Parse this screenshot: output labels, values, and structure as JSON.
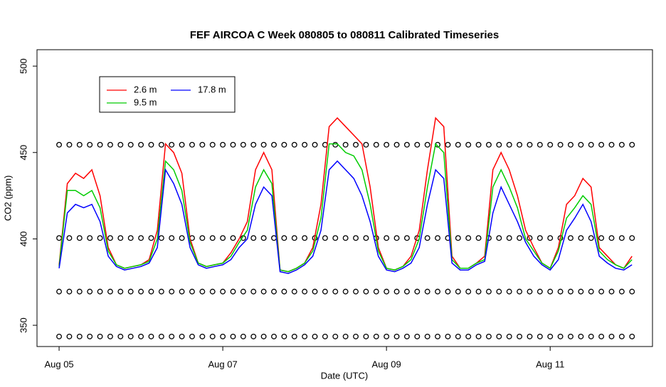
{
  "chart_data": {
    "type": "line",
    "title": "FEF AIRCOA C  Week 080805 to 080811  Calibrated Timeseries",
    "xlabel": "Date (UTC)",
    "ylabel": "CO2 (ppm)",
    "x": [
      0,
      0.1,
      0.2,
      0.3,
      0.4,
      0.5,
      0.6,
      0.7,
      0.8,
      0.9,
      1,
      1.1,
      1.2,
      1.3,
      1.4,
      1.5,
      1.6,
      1.7,
      1.8,
      1.9,
      2,
      2.1,
      2.2,
      2.3,
      2.4,
      2.5,
      2.6,
      2.7,
      2.8,
      2.9,
      3,
      3.1,
      3.2,
      3.3,
      3.4,
      3.5,
      3.6,
      3.7,
      3.8,
      3.9,
      4,
      4.1,
      4.2,
      4.3,
      4.4,
      4.5,
      4.6,
      4.7,
      4.8,
      4.9,
      5,
      5.1,
      5.2,
      5.3,
      5.4,
      5.5,
      5.6,
      5.7,
      5.8,
      5.9,
      6,
      6.1,
      6.2,
      6.3,
      6.4,
      6.5,
      6.6,
      6.7,
      6.8,
      6.9,
      7
    ],
    "series": [
      {
        "name": "2.6 m",
        "color": "#ff0000",
        "values": [
          385,
          432,
          438,
          435,
          440,
          425,
          395,
          385,
          383,
          384,
          385,
          388,
          405,
          455,
          450,
          438,
          400,
          386,
          384,
          385,
          386,
          392,
          400,
          410,
          440,
          450,
          440,
          382,
          381,
          383,
          386,
          395,
          420,
          465,
          470,
          465,
          460,
          455,
          430,
          395,
          383,
          382,
          384,
          390,
          405,
          440,
          470,
          465,
          390,
          383,
          383,
          386,
          390,
          440,
          450,
          440,
          425,
          405,
          395,
          386,
          383,
          395,
          420,
          425,
          435,
          430,
          395,
          390,
          385,
          383,
          390
        ]
      },
      {
        "name": "9.5 m",
        "color": "#00cc00",
        "values": [
          384,
          428,
          428,
          425,
          428,
          418,
          393,
          385,
          383,
          384,
          385,
          387,
          400,
          445,
          440,
          428,
          398,
          386,
          384,
          385,
          386,
          390,
          398,
          405,
          430,
          440,
          432,
          382,
          381,
          383,
          386,
          393,
          412,
          455,
          455,
          450,
          448,
          440,
          420,
          393,
          383,
          382,
          384,
          388,
          400,
          430,
          455,
          450,
          388,
          383,
          383,
          386,
          388,
          430,
          440,
          430,
          418,
          400,
          393,
          386,
          383,
          393,
          412,
          418,
          425,
          420,
          393,
          388,
          385,
          383,
          388
        ]
      },
      {
        "name": "17.8 m",
        "color": "#0000ff",
        "values": [
          383,
          415,
          420,
          418,
          420,
          410,
          390,
          384,
          382,
          383,
          384,
          386,
          395,
          440,
          432,
          420,
          395,
          385,
          383,
          384,
          385,
          388,
          395,
          400,
          420,
          430,
          425,
          381,
          380,
          382,
          385,
          390,
          405,
          440,
          445,
          440,
          435,
          425,
          410,
          390,
          382,
          381,
          383,
          386,
          395,
          420,
          440,
          435,
          386,
          382,
          382,
          385,
          387,
          415,
          430,
          420,
          410,
          398,
          390,
          385,
          382,
          388,
          405,
          412,
          420,
          410,
          390,
          386,
          383,
          382,
          385
        ]
      }
    ],
    "points": {
      "x": [
        0,
        0.125,
        0.25,
        0.375,
        0.5,
        0.625,
        0.75,
        0.875,
        1,
        1.125,
        1.25,
        1.375,
        1.5,
        1.625,
        1.75,
        1.875,
        2,
        2.125,
        2.25,
        2.375,
        2.5,
        2.625,
        2.75,
        2.875,
        3,
        3.125,
        3.25,
        3.375,
        3.5,
        3.625,
        3.75,
        3.875,
        4,
        4.125,
        4.25,
        4.375,
        4.5,
        4.625,
        4.75,
        4.875,
        5,
        5.125,
        5.25,
        5.375,
        5.5,
        5.625,
        5.75,
        5.875,
        6,
        6.125,
        6.25,
        6.375,
        6.5,
        6.625,
        6.75,
        6.875,
        7
      ],
      "levels": [
        454.5,
        400.5,
        369.5,
        343.5
      ]
    },
    "xlim": [
      -0.27,
      7.25
    ],
    "ylim": [
      337.7,
      509.5
    ],
    "xticks": [
      {
        "value": 0,
        "label": "Aug 05"
      },
      {
        "value": 2,
        "label": "Aug 07"
      },
      {
        "value": 4,
        "label": "Aug 09"
      },
      {
        "value": 6,
        "label": "Aug 11"
      }
    ],
    "yticks": [
      350,
      400,
      450,
      500
    ],
    "legend": "top-left"
  }
}
